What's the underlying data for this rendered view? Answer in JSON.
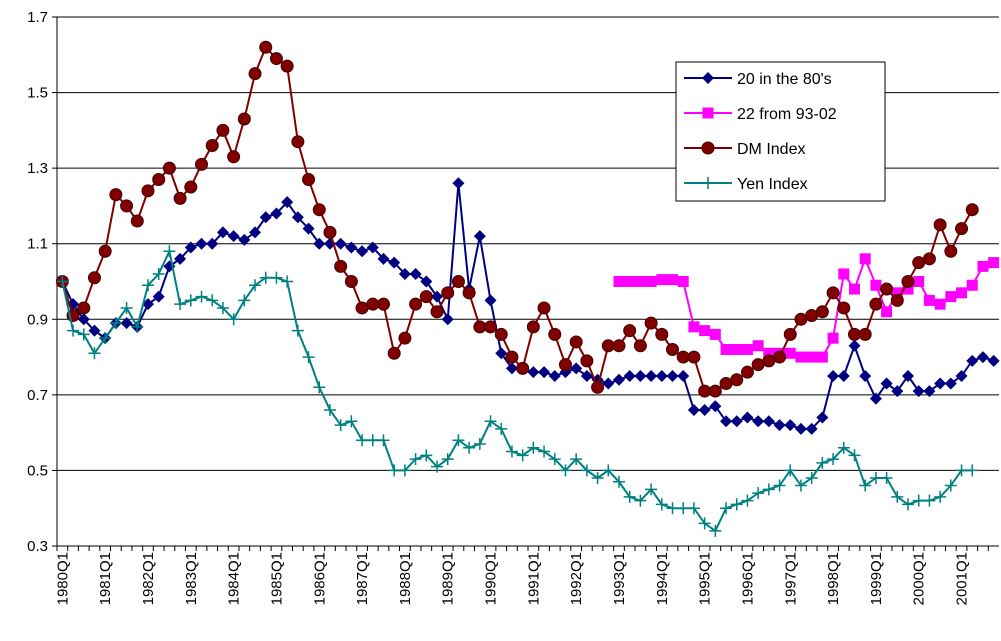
{
  "chart_data": {
    "type": "line",
    "categories": [
      "1980Q1",
      null,
      null,
      null,
      "1981Q1",
      null,
      null,
      null,
      "1982Q1",
      null,
      null,
      null,
      "1983Q1",
      null,
      null,
      null,
      "1984Q1",
      null,
      null,
      null,
      "1985Q1",
      null,
      null,
      null,
      "1986Q1",
      null,
      null,
      null,
      "1987Q1",
      null,
      null,
      null,
      "1988Q1",
      null,
      null,
      null,
      "1989Q1",
      null,
      null,
      null,
      "1990Q1",
      null,
      null,
      null,
      "1991Q1",
      null,
      null,
      null,
      "1992Q1",
      null,
      null,
      null,
      "1993Q1",
      null,
      null,
      null,
      "1994Q1",
      null,
      null,
      null,
      "1995Q1",
      null,
      null,
      null,
      "1996Q1",
      null,
      null,
      null,
      "1997Q1",
      null,
      null,
      null,
      "1998Q1",
      null,
      null,
      null,
      "1999Q1",
      null,
      null,
      null,
      "2000Q1",
      null,
      null,
      null,
      "2001Q1",
      null,
      null,
      null
    ],
    "series": [
      {
        "name": "20 in the 80's",
        "color": "#000080",
        "marker": "diamond",
        "values": [
          1.0,
          0.94,
          0.9,
          0.87,
          0.85,
          0.89,
          0.89,
          0.88,
          0.94,
          0.96,
          1.04,
          1.06,
          1.09,
          1.1,
          1.1,
          1.13,
          1.12,
          1.11,
          1.13,
          1.17,
          1.18,
          1.21,
          1.17,
          1.14,
          1.1,
          1.1,
          1.1,
          1.09,
          1.08,
          1.09,
          1.06,
          1.05,
          1.02,
          1.02,
          1.0,
          0.96,
          0.9,
          1.26,
          0.98,
          1.12,
          0.95,
          0.81,
          0.77,
          0.77,
          0.76,
          0.76,
          0.75,
          0.76,
          0.77,
          0.75,
          0.74,
          0.73,
          0.74,
          0.75,
          0.75,
          0.75,
          0.75,
          0.75,
          0.75,
          0.66,
          0.66,
          0.67,
          0.63,
          0.63,
          0.64,
          0.63,
          0.63,
          0.62,
          0.62,
          0.61,
          0.61,
          0.64,
          0.75,
          0.75,
          0.83,
          0.75,
          0.69,
          0.73,
          0.71,
          0.75,
          0.71,
          0.71,
          0.73,
          0.73,
          0.75,
          0.79,
          0.8,
          0.79
        ]
      },
      {
        "name": "22 from 93-02",
        "color": "#ff00ff",
        "marker": "square",
        "values": [
          null,
          null,
          null,
          null,
          null,
          null,
          null,
          null,
          null,
          null,
          null,
          null,
          null,
          null,
          null,
          null,
          null,
          null,
          null,
          null,
          null,
          null,
          null,
          null,
          null,
          null,
          null,
          null,
          null,
          null,
          null,
          null,
          null,
          null,
          null,
          null,
          null,
          null,
          null,
          null,
          null,
          null,
          null,
          null,
          null,
          null,
          null,
          null,
          null,
          null,
          null,
          null,
          1.0,
          1.0,
          1.0,
          1.0,
          1.005,
          1.005,
          1.0,
          0.88,
          0.87,
          0.86,
          0.82,
          0.82,
          0.82,
          0.83,
          0.81,
          0.81,
          0.81,
          0.8,
          0.8,
          0.8,
          0.85,
          1.02,
          0.98,
          1.06,
          0.99,
          0.92,
          0.97,
          0.98,
          1.0,
          0.95,
          0.94,
          0.96,
          0.97,
          0.99,
          1.04,
          1.05
        ]
      },
      {
        "name": "DM Index",
        "color": "#800000",
        "marker": "circle",
        "values": [
          1.0,
          0.91,
          0.93,
          1.01,
          1.08,
          1.23,
          1.2,
          1.16,
          1.24,
          1.27,
          1.3,
          1.22,
          1.25,
          1.31,
          1.36,
          1.4,
          1.33,
          1.43,
          1.55,
          1.62,
          1.59,
          1.57,
          1.37,
          1.27,
          1.19,
          1.13,
          1.04,
          1.0,
          0.93,
          0.94,
          0.94,
          0.81,
          0.85,
          0.94,
          0.96,
          0.92,
          0.97,
          1.0,
          0.97,
          0.88,
          0.88,
          0.86,
          0.8,
          0.77,
          0.88,
          0.93,
          0.86,
          0.78,
          0.84,
          0.79,
          0.72,
          0.83,
          0.83,
          0.87,
          0.83,
          0.89,
          0.86,
          0.82,
          0.8,
          0.8,
          0.71,
          0.71,
          0.73,
          0.74,
          0.76,
          0.78,
          0.79,
          0.8,
          0.86,
          0.9,
          0.91,
          0.92,
          0.97,
          0.93,
          0.86,
          0.86,
          0.94,
          0.98,
          0.95,
          1.0,
          1.05,
          1.06,
          1.15,
          1.08,
          1.14,
          1.19,
          null,
          null
        ]
      },
      {
        "name": "Yen Index",
        "color": "#008080",
        "marker": "plus",
        "values": [
          1.0,
          0.87,
          0.86,
          0.81,
          0.85,
          0.89,
          0.93,
          0.88,
          0.99,
          1.02,
          1.08,
          0.94,
          0.95,
          0.96,
          0.95,
          0.93,
          0.9,
          0.95,
          0.99,
          1.01,
          1.01,
          1.0,
          0.87,
          0.8,
          0.72,
          0.66,
          0.62,
          0.63,
          0.58,
          0.58,
          0.58,
          0.5,
          0.5,
          0.53,
          0.54,
          0.51,
          0.53,
          0.58,
          0.56,
          0.57,
          0.63,
          0.61,
          0.55,
          0.54,
          0.56,
          0.55,
          0.53,
          0.5,
          0.53,
          0.5,
          0.48,
          0.5,
          0.47,
          0.43,
          0.42,
          0.45,
          0.41,
          0.4,
          0.4,
          0.4,
          0.36,
          0.34,
          0.4,
          0.41,
          0.42,
          0.44,
          0.45,
          0.46,
          0.5,
          0.46,
          0.48,
          0.52,
          0.53,
          0.56,
          0.54,
          0.46,
          0.48,
          0.48,
          0.43,
          0.41,
          0.42,
          0.42,
          0.43,
          0.46,
          0.5,
          0.5,
          null,
          null
        ]
      }
    ],
    "ylim": [
      0.3,
      1.7
    ],
    "yticks": [
      0.3,
      0.5,
      0.7,
      0.9,
      1.1,
      1.3,
      1.5,
      1.7
    ],
    "grid": true,
    "legend": "upper-right"
  }
}
